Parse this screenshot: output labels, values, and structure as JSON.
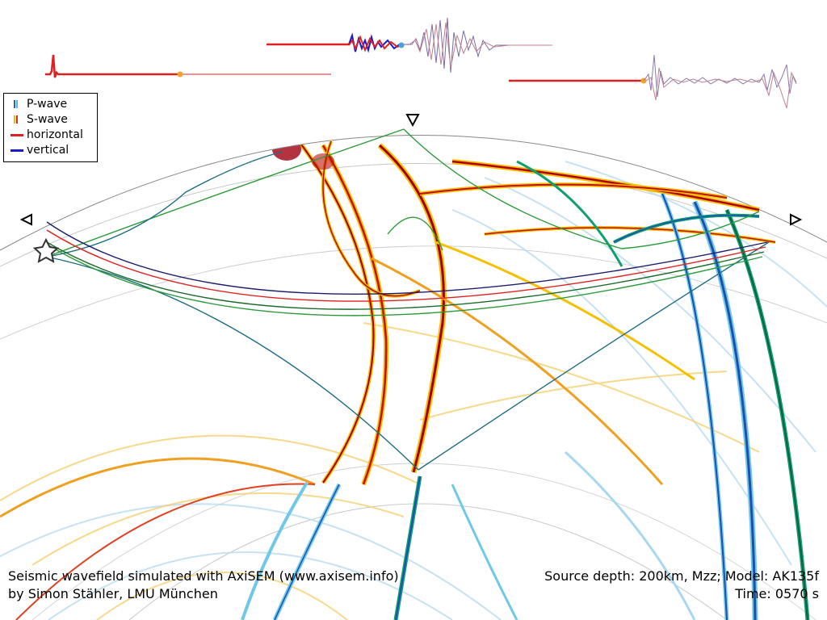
{
  "legend": {
    "items": [
      {
        "label": "P-wave",
        "kind": "bars",
        "colors": [
          "#1f5fbf",
          "#5fb0e0"
        ]
      },
      {
        "label": "S-wave",
        "kind": "bars",
        "colors": [
          "#f5b800",
          "#c0392b"
        ]
      },
      {
        "label": "horizontal",
        "kind": "line",
        "colors": [
          "#e02020"
        ]
      },
      {
        "label": "vertical",
        "kind": "line",
        "colors": [
          "#1a1ad0"
        ]
      }
    ]
  },
  "caption": {
    "line1_left": "Seismic wavefield simulated with AxiSEM (www.axisem.info)",
    "line2_left": "by Simon Stähler, LMU München",
    "line1_right": "Source depth: 200km, Mzz; Model: AK135f",
    "line2_right": "Time: 0570 s"
  },
  "markers": {
    "station_icon": "triangle-icon",
    "source_icon": "star-icon"
  },
  "colors": {
    "horizontal": "#e02020",
    "vertical": "#1a1ad0",
    "ray_green": "#2a9a3a",
    "ray_teal": "#1e6e80",
    "ray_navy": "#1c1c6e",
    "s_wave_dark": "#a00010",
    "s_wave_light": "#f5c000",
    "p_wave_dark": "#1a50b0",
    "p_wave_mid": "#10a070",
    "p_wave_light": "#70c8e8"
  }
}
